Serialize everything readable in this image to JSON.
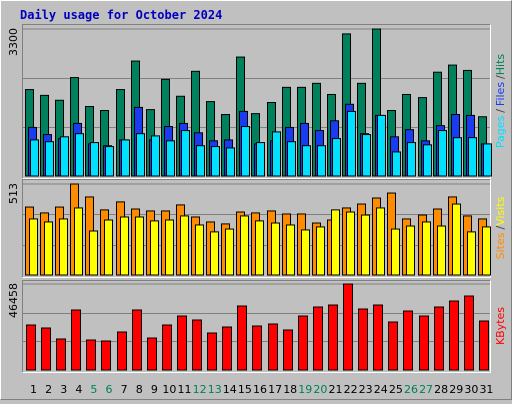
{
  "chart_data": [
    {
      "type": "bar",
      "title": "Daily usage for October 2024",
      "separator": "/",
      "ylim": [
        0,
        3300
      ],
      "yticks": [
        3300
      ],
      "grid_values": [
        1100,
        2200
      ],
      "series": [
        {
          "name": "Hits",
          "color": "#00805c",
          "values": [
            1940,
            1810,
            1700,
            2210,
            1560,
            1470,
            1940,
            2580,
            1490,
            2170,
            1790,
            2350,
            1670,
            1380,
            2670,
            1400,
            1650,
            1990,
            1990,
            2080,
            1830,
            3190,
            2080,
            3300,
            1470,
            1830,
            1760,
            2330,
            2490,
            2370,
            1330
          ]
        },
        {
          "name": "Files",
          "color": "#1a3cf0",
          "values": [
            1090,
            930,
            840,
            1180,
            720,
            680,
            810,
            1540,
            810,
            1110,
            1180,
            970,
            790,
            810,
            1450,
            720,
            790,
            1090,
            1180,
            1020,
            1240,
            1610,
            950,
            1360,
            880,
            1040,
            790,
            1130,
            1380,
            1360,
            720
          ]
        },
        {
          "name": "Pages",
          "color": "#00e0ff",
          "values": [
            810,
            770,
            880,
            950,
            750,
            660,
            810,
            950,
            900,
            790,
            1020,
            680,
            660,
            630,
            1110,
            750,
            990,
            770,
            680,
            680,
            840,
            1450,
            930,
            1360,
            540,
            750,
            700,
            1020,
            860,
            860,
            720
          ]
        }
      ]
    },
    {
      "type": "bar",
      "separator": "/",
      "ylim": [
        0,
        513
      ],
      "yticks": [
        513
      ],
      "grid_values": [
        171,
        342
      ],
      "series": [
        {
          "name": "Visits",
          "color": "#ffff00",
          "values": [
            316,
            299,
            316,
            378,
            248,
            310,
            327,
            327,
            305,
            310,
            333,
            282,
            243,
            259,
            333,
            305,
            293,
            282,
            254,
            271,
            367,
            355,
            338,
            378,
            259,
            276,
            299,
            276,
            400,
            243,
            271
          ]
        },
        {
          "name": "Sites",
          "color": "#ff8c00",
          "values": [
            383,
            350,
            383,
            513,
            440,
            367,
            412,
            372,
            361,
            361,
            395,
            327,
            299,
            288,
            355,
            350,
            361,
            344,
            344,
            293,
            310,
            378,
            400,
            434,
            462,
            316,
            338,
            372,
            440,
            333,
            316
          ]
        }
      ]
    },
    {
      "type": "bar",
      "ylim": [
        0,
        46458
      ],
      "yticks": [
        46458
      ],
      "grid_values": [
        15486,
        30972
      ],
      "categories": [
        "1",
        "2",
        "3",
        "4",
        "5",
        "6",
        "7",
        "8",
        "9",
        "10",
        "11",
        "12",
        "13",
        "14",
        "15",
        "16",
        "17",
        "18",
        "19",
        "20",
        "21",
        "22",
        "23",
        "24",
        "25",
        "26",
        "27",
        "28",
        "29",
        "30",
        "31"
      ],
      "category_colors": [
        "#000000",
        "#000000",
        "#000000",
        "#000000",
        "#00805c",
        "#00805c",
        "#000000",
        "#000000",
        "#000000",
        "#000000",
        "#000000",
        "#00805c",
        "#00805c",
        "#000000",
        "#000000",
        "#000000",
        "#000000",
        "#000000",
        "#00805c",
        "#00805c",
        "#000000",
        "#000000",
        "#000000",
        "#000000",
        "#000000",
        "#00805c",
        "#00805c",
        "#000000",
        "#000000",
        "#000000",
        "#000000"
      ],
      "series": [
        {
          "name": "KBytes",
          "color": "#ff0000",
          "values": [
            24310,
            22690,
            16750,
            32410,
            16210,
            15670,
            20530,
            32410,
            17290,
            24310,
            29170,
            27010,
            19990,
            23230,
            34570,
            23770,
            24850,
            21610,
            29170,
            34030,
            35110,
            46458,
            32950,
            35110,
            25930,
            31870,
            29170,
            34030,
            37270,
            39970,
            26470
          ]
        }
      ]
    }
  ]
}
